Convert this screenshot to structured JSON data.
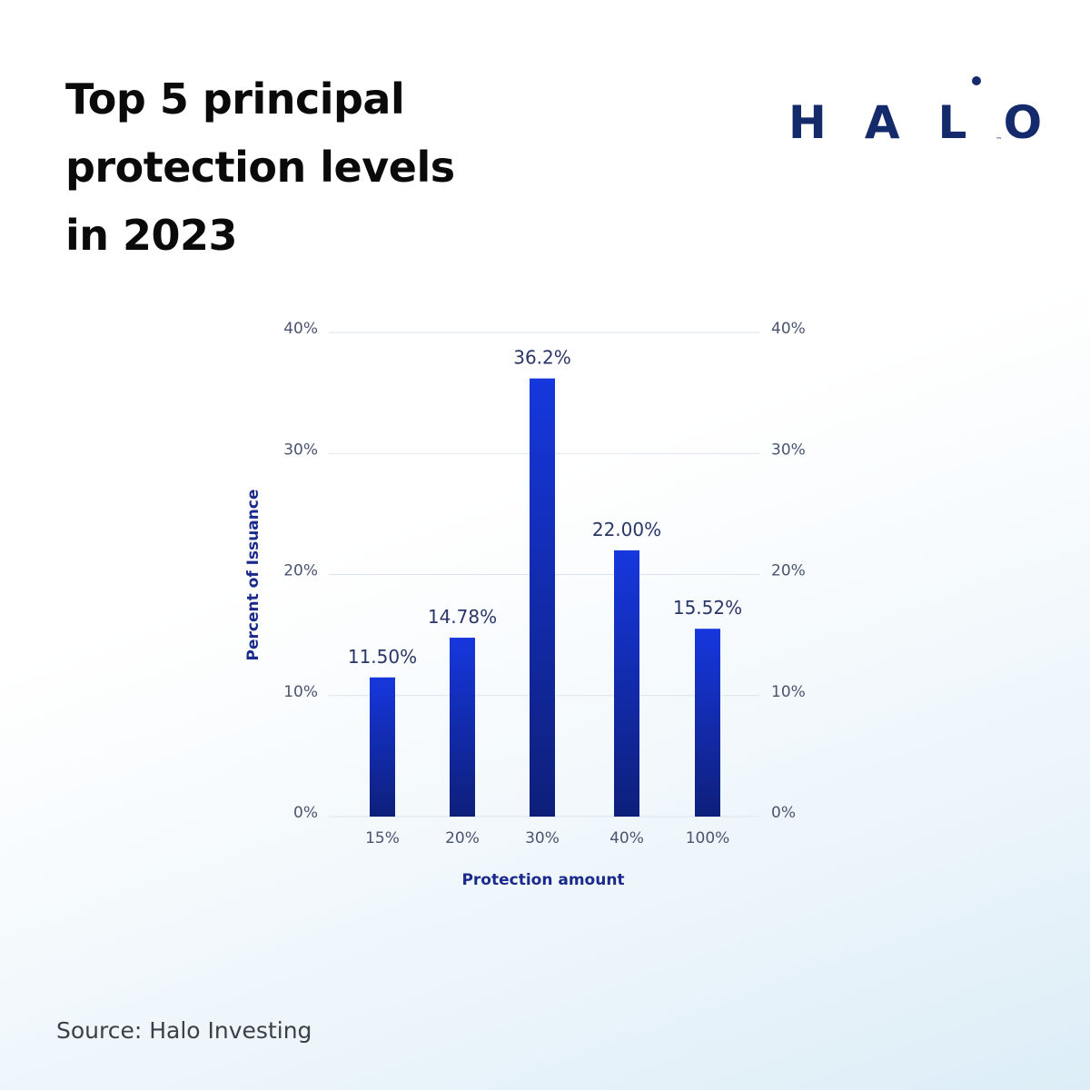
{
  "title_lines": [
    "Top 5 principal",
    "protection levels",
    "in 2023"
  ],
  "logo": {
    "text": "HALO",
    "tm": "™",
    "color": "#142a6b"
  },
  "source": "Source: Halo Investing",
  "colors": {
    "bar_top": "#1637dd",
    "bar_bottom": "#0e1f7a",
    "axis_label": "#1a2a8c",
    "tick": "#4a5470",
    "grid": "#dde3ee"
  },
  "chart_data": {
    "type": "bar",
    "categories": [
      "15%",
      "20%",
      "30%",
      "40%",
      "100%"
    ],
    "values": [
      11.5,
      14.78,
      36.2,
      22.0,
      15.52
    ],
    "data_labels": [
      "11.50%",
      "14.78%",
      "36.2%",
      "22.00%",
      "15.52%"
    ],
    "xlabel": "Protection amount",
    "ylabel": "Percent of Issuance",
    "ylim": [
      0,
      40
    ],
    "yticks": [
      0,
      10,
      20,
      30,
      40
    ],
    "ytick_labels": [
      "0%",
      "10%",
      "20%",
      "30%",
      "40%"
    ],
    "grid": true,
    "secondary_y_axis": true
  }
}
